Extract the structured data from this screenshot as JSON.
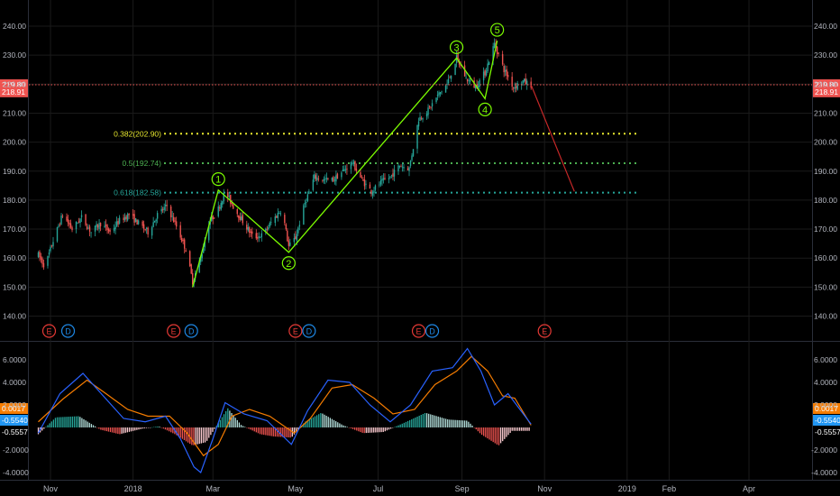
{
  "chart_data": [
    {
      "type": "candlestick",
      "panel": "price",
      "title": "",
      "ylim": [
        133,
        248
      ],
      "y_ticks": [
        "140.00",
        "150.00",
        "160.00",
        "170.00",
        "180.00",
        "190.00",
        "200.00",
        "210.00",
        "220.00",
        "230.00",
        "240.00"
      ],
      "x_ticks": [
        "Nov",
        "2018",
        "Mar",
        "May",
        "Jul",
        "Sep",
        "Nov",
        "2019",
        "Feb",
        "Apr"
      ],
      "x_tick_dates": [
        "2017-11-01",
        "2018-01-01",
        "2018-03-01",
        "2018-05-01",
        "2018-07-01",
        "2018-09-01",
        "2018-11-01",
        "2019-01-01",
        "2019-02-01",
        "2019-04-01"
      ],
      "price_path": [
        [
          "2017-10-23",
          161
        ],
        [
          "2017-10-28",
          157
        ],
        [
          "2017-11-03",
          166
        ],
        [
          "2017-11-10",
          175
        ],
        [
          "2017-11-17",
          170
        ],
        [
          "2017-11-24",
          174
        ],
        [
          "2017-12-01",
          169
        ],
        [
          "2017-12-08",
          172
        ],
        [
          "2017-12-15",
          169
        ],
        [
          "2017-12-22",
          173
        ],
        [
          "2017-12-29",
          175
        ],
        [
          "2018-01-05",
          172
        ],
        [
          "2018-01-12",
          169
        ],
        [
          "2018-01-19",
          175
        ],
        [
          "2018-01-26",
          178
        ],
        [
          "2018-02-02",
          171
        ],
        [
          "2018-02-09",
          163
        ],
        [
          "2018-02-14",
          152
        ],
        [
          "2018-02-20",
          160
        ],
        [
          "2018-02-26",
          172
        ],
        [
          "2018-03-05",
          177
        ],
        [
          "2018-03-10",
          183
        ],
        [
          "2018-03-17",
          177
        ],
        [
          "2018-03-24",
          172
        ],
        [
          "2018-03-31",
          167
        ],
        [
          "2018-04-07",
          168
        ],
        [
          "2018-04-14",
          173
        ],
        [
          "2018-04-21",
          177
        ],
        [
          "2018-04-26",
          164
        ],
        [
          "2018-05-01",
          167
        ],
        [
          "2018-05-08",
          179
        ],
        [
          "2018-05-15",
          188
        ],
        [
          "2018-05-22",
          187
        ],
        [
          "2018-05-29",
          187
        ],
        [
          "2018-06-05",
          190
        ],
        [
          "2018-06-12",
          193
        ],
        [
          "2018-06-19",
          187
        ],
        [
          "2018-06-26",
          183
        ],
        [
          "2018-07-03",
          186
        ],
        [
          "2018-07-10",
          188
        ],
        [
          "2018-07-17",
          192
        ],
        [
          "2018-07-24",
          191
        ],
        [
          "2018-07-31",
          208
        ],
        [
          "2018-08-07",
          211
        ],
        [
          "2018-08-14",
          216
        ],
        [
          "2018-08-21",
          220
        ],
        [
          "2018-08-28",
          229
        ],
        [
          "2018-09-04",
          222
        ],
        [
          "2018-09-11",
          219
        ],
        [
          "2018-09-18",
          224
        ],
        [
          "2018-09-25",
          234
        ],
        [
          "2018-10-02",
          225
        ],
        [
          "2018-10-09",
          219
        ],
        [
          "2018-10-16",
          221
        ],
        [
          "2018-10-22",
          219.8
        ]
      ],
      "elliott_wave": [
        {
          "label": "",
          "date": "2018-02-14",
          "price": 150
        },
        {
          "label": "1",
          "date": "2018-03-05",
          "price": 183.5
        },
        {
          "label": "2",
          "date": "2018-04-26",
          "price": 162
        },
        {
          "label": "3",
          "date": "2018-08-28",
          "price": 229
        },
        {
          "label": "4",
          "date": "2018-09-18",
          "price": 215
        },
        {
          "label": "5",
          "date": "2018-09-27",
          "price": 235
        }
      ],
      "fib_levels": [
        {
          "label": "0.382(202.90)",
          "value": 202.9,
          "color": "#e6e62e"
        },
        {
          "label": "0.5(192.74)",
          "value": 192.74,
          "color": "#4caf50"
        },
        {
          "label": "0.618(182.58)",
          "value": 182.58,
          "color": "#26a69a"
        }
      ],
      "projection": {
        "from": [
          "2018-10-22",
          219.8
        ],
        "to": [
          "2018-11-23",
          183
        ]
      },
      "price_line": {
        "value": 219.8,
        "label": "219.80"
      },
      "secondary_label": {
        "value": 218.91,
        "label": "218.91"
      },
      "events": [
        {
          "date": "2017-10-31",
          "type": "E"
        },
        {
          "date": "2017-11-14",
          "type": "D"
        },
        {
          "date": "2018-01-31",
          "type": "E"
        },
        {
          "date": "2018-02-13",
          "type": "D"
        },
        {
          "date": "2018-05-01",
          "type": "E"
        },
        {
          "date": "2018-05-11",
          "type": "D"
        },
        {
          "date": "2018-07-31",
          "type": "E"
        },
        {
          "date": "2018-08-10",
          "type": "D"
        },
        {
          "date": "2018-11-01",
          "type": "E"
        }
      ]
    },
    {
      "type": "macd",
      "panel": "indicator",
      "ylim": [
        -5,
        7.5
      ],
      "y_ticks": [
        "6.0000",
        "4.0000",
        "2.0000",
        "-2.0000",
        "-4.0000"
      ],
      "y_tick_values": [
        6,
        4,
        2,
        -2,
        -4
      ],
      "labels": {
        "value_a": "0.0017",
        "value_b": "-0.5540",
        "value_c": "-0.5557"
      },
      "macd_line": [
        [
          "2017-10-23",
          -0.5
        ],
        [
          "2017-11-08",
          3
        ],
        [
          "2017-11-25",
          4.8
        ],
        [
          "2017-12-10",
          2.8
        ],
        [
          "2017-12-25",
          0.8
        ],
        [
          "2018-01-10",
          0.5
        ],
        [
          "2018-01-25",
          1
        ],
        [
          "2018-02-05",
          -1
        ],
        [
          "2018-02-15",
          -3.5
        ],
        [
          "2018-02-20",
          -4
        ],
        [
          "2018-03-01",
          -1
        ],
        [
          "2018-03-10",
          2.2
        ],
        [
          "2018-03-24",
          1.2
        ],
        [
          "2018-04-10",
          0.6
        ],
        [
          "2018-04-28",
          -1.5
        ],
        [
          "2018-05-10",
          1.5
        ],
        [
          "2018-05-25",
          4.2
        ],
        [
          "2018-06-10",
          4
        ],
        [
          "2018-06-25",
          2
        ],
        [
          "2018-07-10",
          0.5
        ],
        [
          "2018-07-25",
          2
        ],
        [
          "2018-08-10",
          5
        ],
        [
          "2018-08-25",
          5.3
        ],
        [
          "2018-09-05",
          7
        ],
        [
          "2018-09-15",
          5
        ],
        [
          "2018-09-25",
          2
        ],
        [
          "2018-10-05",
          3
        ],
        [
          "2018-10-22",
          0.3
        ]
      ],
      "signal_line": [
        [
          "2017-10-23",
          0.5
        ],
        [
          "2017-11-10",
          2.5
        ],
        [
          "2017-11-28",
          4.2
        ],
        [
          "2017-12-12",
          3
        ],
        [
          "2017-12-28",
          1.6
        ],
        [
          "2018-01-12",
          1
        ],
        [
          "2018-01-28",
          1
        ],
        [
          "2018-02-10",
          -0.5
        ],
        [
          "2018-02-22",
          -2.5
        ],
        [
          "2018-03-05",
          -1.5
        ],
        [
          "2018-03-15",
          1
        ],
        [
          "2018-03-28",
          1.6
        ],
        [
          "2018-04-12",
          1
        ],
        [
          "2018-04-30",
          -0.5
        ],
        [
          "2018-05-12",
          0.8
        ],
        [
          "2018-05-28",
          3.5
        ],
        [
          "2018-06-12",
          3.8
        ],
        [
          "2018-06-28",
          2.6
        ],
        [
          "2018-07-12",
          1.2
        ],
        [
          "2018-07-28",
          1.6
        ],
        [
          "2018-08-12",
          3.8
        ],
        [
          "2018-08-28",
          5
        ],
        [
          "2018-09-08",
          6.3
        ],
        [
          "2018-09-20",
          5
        ],
        [
          "2018-10-01",
          2.8
        ],
        [
          "2018-10-10",
          2.6
        ],
        [
          "2018-10-22",
          0.2
        ]
      ],
      "histogram_peaks": [
        [
          "2017-10-23",
          -0.6
        ],
        [
          "2017-11-05",
          0.9
        ],
        [
          "2017-11-22",
          1
        ],
        [
          "2017-12-08",
          -0.2
        ],
        [
          "2017-12-22",
          -0.6
        ],
        [
          "2018-01-08",
          -0.1
        ],
        [
          "2018-01-20",
          0.1
        ],
        [
          "2018-02-01",
          -0.6
        ],
        [
          "2018-02-14",
          -1.6
        ],
        [
          "2018-02-24",
          -1.3
        ],
        [
          "2018-03-05",
          0.4
        ],
        [
          "2018-03-12",
          1.7
        ],
        [
          "2018-03-22",
          0.2
        ],
        [
          "2018-04-05",
          -0.6
        ],
        [
          "2018-04-15",
          -0.8
        ],
        [
          "2018-04-28",
          -0.9
        ],
        [
          "2018-05-08",
          0.5
        ],
        [
          "2018-05-20",
          1.3
        ],
        [
          "2018-06-05",
          0.2
        ],
        [
          "2018-06-20",
          -0.5
        ],
        [
          "2018-07-05",
          -0.4
        ],
        [
          "2018-07-20",
          0.4
        ],
        [
          "2018-08-05",
          1.3
        ],
        [
          "2018-08-22",
          0.7
        ],
        [
          "2018-09-05",
          0.6
        ],
        [
          "2018-09-15",
          -0.6
        ],
        [
          "2018-09-28",
          -1.6
        ],
        [
          "2018-10-08",
          -0.3
        ],
        [
          "2018-10-22",
          -0.3
        ]
      ],
      "colors": {
        "macd": "#2962ff",
        "signal": "#f57c00",
        "hist_pos_strong": "#26a69a",
        "hist_pos_weak": "#b2dfdb",
        "hist_neg_strong": "#ef5350",
        "hist_neg_weak": "#ffcdd2"
      }
    }
  ],
  "colors": {
    "up": "#26a69a",
    "down": "#ef5350",
    "wave": "#7cfc00",
    "projection": "#c62828",
    "price_line": "#ef5350",
    "axis_text": "#b2b5be",
    "grid": "#1a1a1a",
    "separator": "#2a2e39",
    "E": "#e53935",
    "D": "#1e88e5",
    "badge_b": "#2196f3",
    "badge_a": "#f57c00"
  }
}
